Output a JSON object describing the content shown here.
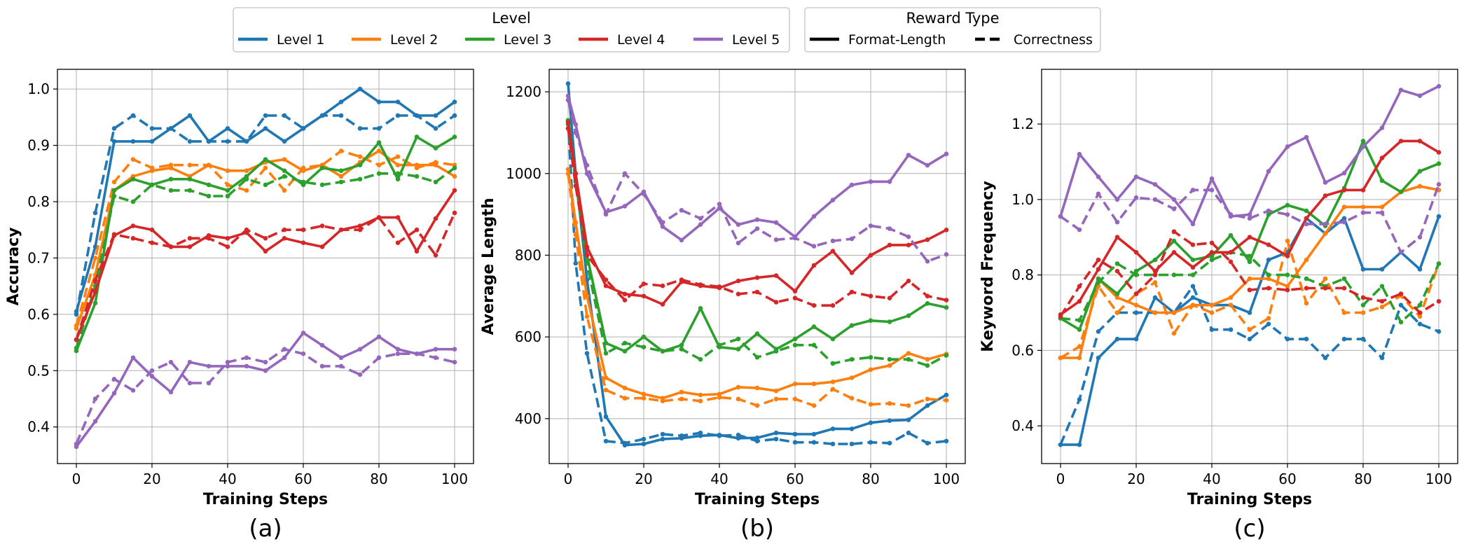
{
  "legend": {
    "level": {
      "title": "Level",
      "entries": [
        {
          "label": "Level 1",
          "color": "#1f77b4"
        },
        {
          "label": "Level 2",
          "color": "#ff7f0e"
        },
        {
          "label": "Level 3",
          "color": "#2ca02c"
        },
        {
          "label": "Level 4",
          "color": "#d62728"
        },
        {
          "label": "Level 5",
          "color": "#9467bd"
        }
      ]
    },
    "reward": {
      "title": "Reward Type",
      "entries": [
        {
          "label": "Format-Length",
          "style": "solid"
        },
        {
          "label": "Correctness",
          "style": "dashed"
        }
      ]
    }
  },
  "chart_data": [
    {
      "type": "line",
      "panel_label": "(a)",
      "xlabel": "Training Steps",
      "ylabel": "Accuracy",
      "xlim": [
        -5,
        105
      ],
      "ylim": [
        0.335,
        1.035
      ],
      "xticks": [
        0,
        20,
        40,
        60,
        80,
        100
      ],
      "yticks": [
        0.4,
        0.5,
        0.6,
        0.7,
        0.8,
        0.9,
        1.0
      ],
      "ytick_labels": [
        "0.4",
        "0.5",
        "0.6",
        "0.7",
        "0.8",
        "0.9",
        "1.0"
      ],
      "x": [
        0,
        5,
        10,
        15,
        20,
        25,
        30,
        35,
        40,
        45,
        50,
        55,
        60,
        65,
        70,
        75,
        80,
        85,
        90,
        95,
        100
      ],
      "series": [
        {
          "name": "Level 1 Format-Length",
          "level": 0,
          "style": "solid",
          "values": [
            0.605,
            0.72,
            0.907,
            0.907,
            0.907,
            0.93,
            0.953,
            0.907,
            0.93,
            0.907,
            0.93,
            0.907,
            0.93,
            0.953,
            0.977,
            1.0,
            0.977,
            0.977,
            0.953,
            0.953,
            0.977
          ]
        },
        {
          "name": "Level 1 Correctness",
          "level": 0,
          "style": "dashed",
          "values": [
            0.6,
            0.78,
            0.93,
            0.953,
            0.93,
            0.93,
            0.907,
            0.907,
            0.907,
            0.907,
            0.953,
            0.953,
            0.93,
            0.953,
            0.953,
            0.93,
            0.93,
            0.953,
            0.953,
            0.93,
            0.953
          ]
        },
        {
          "name": "Level 2 Format-Length",
          "level": 1,
          "style": "solid",
          "values": [
            0.575,
            0.67,
            0.82,
            0.845,
            0.855,
            0.86,
            0.845,
            0.865,
            0.855,
            0.855,
            0.87,
            0.875,
            0.855,
            0.865,
            0.845,
            0.87,
            0.89,
            0.865,
            0.865,
            0.865,
            0.845
          ]
        },
        {
          "name": "Level 2 Correctness",
          "level": 1,
          "style": "dashed",
          "values": [
            0.58,
            0.7,
            0.835,
            0.875,
            0.86,
            0.865,
            0.865,
            0.865,
            0.83,
            0.82,
            0.86,
            0.82,
            0.86,
            0.865,
            0.89,
            0.88,
            0.865,
            0.88,
            0.86,
            0.87,
            0.865
          ]
        },
        {
          "name": "Level 3 Format-Length",
          "level": 2,
          "style": "solid",
          "values": [
            0.535,
            0.62,
            0.82,
            0.84,
            0.83,
            0.84,
            0.84,
            0.83,
            0.82,
            0.845,
            0.875,
            0.855,
            0.83,
            0.86,
            0.855,
            0.865,
            0.905,
            0.84,
            0.915,
            0.895,
            0.915
          ]
        },
        {
          "name": "Level 3 Correctness",
          "level": 2,
          "style": "dashed",
          "values": [
            0.54,
            0.65,
            0.81,
            0.8,
            0.83,
            0.82,
            0.82,
            0.81,
            0.81,
            0.84,
            0.83,
            0.845,
            0.835,
            0.83,
            0.835,
            0.84,
            0.85,
            0.85,
            0.845,
            0.835,
            0.86
          ]
        },
        {
          "name": "Level 4 Format-Length",
          "level": 3,
          "style": "solid",
          "values": [
            0.555,
            0.64,
            0.74,
            0.757,
            0.75,
            0.72,
            0.72,
            0.74,
            0.735,
            0.745,
            0.712,
            0.735,
            0.727,
            0.72,
            0.75,
            0.757,
            0.772,
            0.772,
            0.712,
            0.77,
            0.82
          ]
        },
        {
          "name": "Level 4 Correctness",
          "level": 3,
          "style": "dashed",
          "values": [
            0.555,
            0.66,
            0.742,
            0.735,
            0.727,
            0.72,
            0.735,
            0.735,
            0.72,
            0.75,
            0.735,
            0.75,
            0.75,
            0.757,
            0.75,
            0.75,
            0.772,
            0.727,
            0.75,
            0.705,
            0.78
          ]
        },
        {
          "name": "Level 5 Format-Length",
          "level": 4,
          "style": "solid",
          "values": [
            0.365,
            0.41,
            0.46,
            0.523,
            0.49,
            0.462,
            0.515,
            0.508,
            0.508,
            0.508,
            0.5,
            0.523,
            0.567,
            0.545,
            0.523,
            0.538,
            0.56,
            0.538,
            0.53,
            0.538,
            0.538
          ]
        },
        {
          "name": "Level 5 Correctness",
          "level": 4,
          "style": "dashed",
          "values": [
            0.37,
            0.45,
            0.485,
            0.465,
            0.5,
            0.515,
            0.478,
            0.478,
            0.515,
            0.523,
            0.515,
            0.538,
            0.53,
            0.508,
            0.508,
            0.493,
            0.523,
            0.53,
            0.53,
            0.523,
            0.515
          ]
        }
      ]
    },
    {
      "type": "line",
      "panel_label": "(b)",
      "xlabel": "Training Steps",
      "ylabel": "Average Length",
      "xlim": [
        -5,
        105
      ],
      "ylim": [
        290,
        1255
      ],
      "xticks": [
        0,
        20,
        40,
        60,
        80,
        100
      ],
      "yticks": [
        400,
        600,
        800,
        1000,
        1200
      ],
      "ytick_labels": [
        "400",
        "600",
        "800",
        "1000",
        "1200"
      ],
      "x": [
        0,
        2,
        5,
        10,
        15,
        20,
        25,
        30,
        35,
        40,
        45,
        50,
        55,
        60,
        65,
        70,
        75,
        80,
        85,
        90,
        95,
        100
      ],
      "series": [
        {
          "name": "Level 1 Format-Length",
          "level": 0,
          "style": "solid",
          "values": [
            1220,
            1000,
            740,
            405,
            335,
            338,
            350,
            352,
            358,
            360,
            352,
            353,
            365,
            362,
            362,
            375,
            375,
            390,
            395,
            397,
            432,
            458
          ]
        },
        {
          "name": "Level 1 Correctness",
          "level": 0,
          "style": "dashed",
          "values": [
            1130,
            780,
            560,
            345,
            340,
            350,
            362,
            358,
            365,
            358,
            360,
            345,
            350,
            342,
            342,
            338,
            338,
            342,
            340,
            365,
            340,
            345
          ]
        },
        {
          "name": "Level 2 Format-Length",
          "level": 1,
          "style": "solid",
          "values": [
            1010,
            880,
            700,
            500,
            475,
            460,
            450,
            465,
            458,
            460,
            477,
            475,
            468,
            485,
            485,
            490,
            500,
            520,
            530,
            560,
            545,
            558
          ]
        },
        {
          "name": "Level 2 Correctness",
          "level": 1,
          "style": "dashed",
          "values": [
            1000,
            850,
            650,
            470,
            450,
            450,
            443,
            448,
            443,
            452,
            448,
            432,
            448,
            448,
            432,
            472,
            450,
            435,
            437,
            432,
            448,
            445
          ]
        },
        {
          "name": "Level 3 Format-Length",
          "level": 2,
          "style": "solid",
          "values": [
            1130,
            1000,
            800,
            585,
            565,
            600,
            565,
            580,
            670,
            575,
            570,
            608,
            570,
            595,
            625,
            595,
            628,
            640,
            637,
            652,
            682,
            672
          ]
        },
        {
          "name": "Level 3 Correctness",
          "level": 2,
          "style": "dashed",
          "values": [
            1120,
            980,
            780,
            560,
            585,
            575,
            565,
            570,
            545,
            580,
            595,
            550,
            565,
            580,
            580,
            535,
            545,
            550,
            545,
            545,
            530,
            555
          ]
        },
        {
          "name": "Level 4 Format-Length",
          "level": 3,
          "style": "solid",
          "values": [
            1125,
            1000,
            820,
            725,
            705,
            700,
            680,
            735,
            725,
            720,
            737,
            745,
            750,
            712,
            775,
            810,
            757,
            800,
            825,
            825,
            838,
            862
          ]
        },
        {
          "name": "Level 4 Correctness",
          "level": 3,
          "style": "dashed",
          "values": [
            1110,
            970,
            800,
            740,
            690,
            730,
            725,
            740,
            728,
            723,
            705,
            710,
            685,
            695,
            677,
            677,
            710,
            700,
            695,
            737,
            700,
            690
          ]
        },
        {
          "name": "Level 5 Format-Length",
          "level": 4,
          "style": "solid",
          "values": [
            1190,
            1120,
            1000,
            905,
            920,
            955,
            870,
            837,
            875,
            915,
            875,
            887,
            880,
            845,
            895,
            935,
            972,
            980,
            980,
            1045,
            1020,
            1048
          ]
        },
        {
          "name": "Level 5 Correctness",
          "level": 4,
          "style": "dashed",
          "values": [
            1180,
            1100,
            1020,
            900,
            1000,
            950,
            880,
            910,
            890,
            925,
            830,
            865,
            838,
            842,
            822,
            835,
            840,
            872,
            865,
            845,
            785,
            802
          ]
        }
      ]
    },
    {
      "type": "line",
      "panel_label": "(c)",
      "xlabel": "Training Steps",
      "ylabel": "Keyword Frequency",
      "xlim": [
        -5,
        105
      ],
      "ylim": [
        0.3,
        1.345
      ],
      "xticks": [
        0,
        20,
        40,
        60,
        80,
        100
      ],
      "yticks": [
        0.4,
        0.6,
        0.8,
        1.0,
        1.2
      ],
      "ytick_labels": [
        "0.4",
        "0.6",
        "0.8",
        "1.0",
        "1.2"
      ],
      "x": [
        0,
        5,
        10,
        15,
        20,
        25,
        30,
        35,
        40,
        45,
        50,
        55,
        60,
        65,
        70,
        75,
        80,
        85,
        90,
        95,
        100
      ],
      "series": [
        {
          "name": "Level 1 Format-Length",
          "level": 0,
          "style": "solid",
          "values": [
            0.35,
            0.35,
            0.58,
            0.63,
            0.63,
            0.74,
            0.7,
            0.74,
            0.72,
            0.72,
            0.7,
            0.84,
            0.86,
            0.95,
            0.91,
            0.95,
            0.815,
            0.815,
            0.86,
            0.815,
            0.955
          ]
        },
        {
          "name": "Level 1 Correctness",
          "level": 0,
          "style": "dashed",
          "values": [
            0.35,
            0.47,
            0.65,
            0.7,
            0.7,
            0.7,
            0.7,
            0.77,
            0.655,
            0.655,
            0.63,
            0.67,
            0.63,
            0.63,
            0.58,
            0.63,
            0.63,
            0.58,
            0.72,
            0.67,
            0.65
          ]
        },
        {
          "name": "Level 2 Format-Length",
          "level": 1,
          "style": "solid",
          "values": [
            0.58,
            0.58,
            0.79,
            0.74,
            0.72,
            0.7,
            0.7,
            0.72,
            0.72,
            0.74,
            0.79,
            0.79,
            0.77,
            0.84,
            0.91,
            0.98,
            0.98,
            0.98,
            1.02,
            1.035,
            1.025
          ]
        },
        {
          "name": "Level 2 Correctness",
          "level": 1,
          "style": "dashed",
          "values": [
            0.58,
            0.61,
            0.77,
            0.7,
            0.75,
            0.78,
            0.645,
            0.72,
            0.7,
            0.72,
            0.655,
            0.685,
            0.89,
            0.725,
            0.79,
            0.7,
            0.7,
            0.715,
            0.745,
            0.69,
            0.83
          ]
        },
        {
          "name": "Level 3 Format-Length",
          "level": 2,
          "style": "solid",
          "values": [
            0.685,
            0.655,
            0.79,
            0.75,
            0.81,
            0.84,
            0.89,
            0.84,
            0.85,
            0.905,
            0.835,
            0.96,
            0.985,
            0.97,
            0.93,
            1.03,
            1.155,
            1.05,
            1.02,
            1.075,
            1.095
          ]
        },
        {
          "name": "Level 3 Correctness",
          "level": 2,
          "style": "dashed",
          "values": [
            0.685,
            0.68,
            0.78,
            0.83,
            0.8,
            0.8,
            0.8,
            0.8,
            0.84,
            0.86,
            0.85,
            0.8,
            0.8,
            0.79,
            0.77,
            0.79,
            0.72,
            0.77,
            0.675,
            0.72,
            0.83
          ]
        },
        {
          "name": "Level 4 Format-Length",
          "level": 3,
          "style": "solid",
          "values": [
            0.695,
            0.73,
            0.815,
            0.9,
            0.86,
            0.81,
            0.86,
            0.82,
            0.86,
            0.86,
            0.9,
            0.88,
            0.85,
            0.95,
            1.01,
            1.025,
            1.025,
            1.11,
            1.155,
            1.155,
            1.125
          ]
        },
        {
          "name": "Level 4 Correctness",
          "level": 3,
          "style": "dashed",
          "values": [
            0.69,
            0.77,
            0.84,
            0.81,
            0.75,
            0.8,
            0.915,
            0.88,
            0.885,
            0.835,
            0.76,
            0.765,
            0.76,
            0.765,
            0.765,
            0.765,
            0.74,
            0.73,
            0.75,
            0.7,
            0.73
          ]
        },
        {
          "name": "Level 5 Format-Length",
          "level": 4,
          "style": "solid",
          "values": [
            0.955,
            1.12,
            1.06,
            1.0,
            1.06,
            1.04,
            1.0,
            0.935,
            1.055,
            0.955,
            0.96,
            1.075,
            1.14,
            1.165,
            1.045,
            1.07,
            1.14,
            1.19,
            1.29,
            1.275,
            1.3
          ]
        },
        {
          "name": "Level 5 Correctness",
          "level": 4,
          "style": "dashed",
          "values": [
            0.955,
            0.92,
            1.015,
            0.94,
            1.005,
            1.0,
            0.975,
            1.025,
            1.025,
            0.96,
            0.95,
            0.97,
            0.96,
            0.935,
            0.935,
            0.94,
            0.965,
            0.965,
            0.86,
            0.9,
            1.04
          ]
        }
      ]
    }
  ]
}
